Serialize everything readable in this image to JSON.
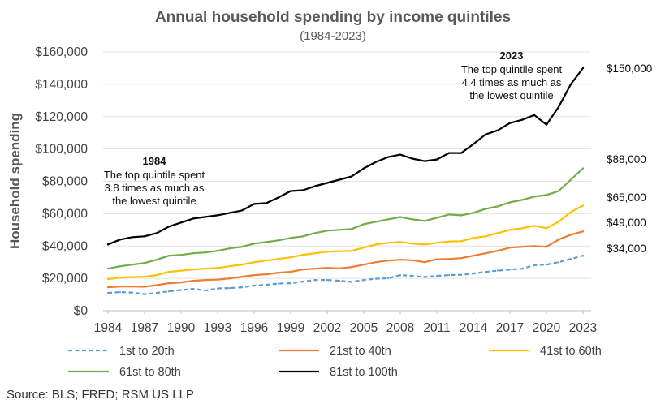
{
  "chart_data": {
    "type": "line",
    "title": "Annual household spending by income quintiles",
    "subtitle": "(1984-2023)",
    "xlabel": "",
    "ylabel": "Household spending",
    "x": [
      1984,
      1985,
      1986,
      1987,
      1988,
      1989,
      1990,
      1991,
      1992,
      1993,
      1994,
      1995,
      1996,
      1997,
      1998,
      1999,
      2000,
      2001,
      2002,
      2003,
      2004,
      2005,
      2006,
      2007,
      2008,
      2009,
      2010,
      2011,
      2012,
      2013,
      2014,
      2015,
      2016,
      2017,
      2018,
      2019,
      2020,
      2021,
      2022,
      2023
    ],
    "x_ticks": [
      "1984",
      "1987",
      "1990",
      "1993",
      "1996",
      "1999",
      "2002",
      "2005",
      "2008",
      "2011",
      "2014",
      "2017",
      "2020",
      "2023"
    ],
    "y_ticks": [
      "$0",
      "$20,000",
      "$40,000",
      "$60,000",
      "$80,000",
      "$100,000",
      "$120,000",
      "$140,000",
      "$160,000"
    ],
    "ylim": [
      0,
      160000
    ],
    "legend_position": "bottom",
    "series": [
      {
        "name": "1st to 20th",
        "color": "#5b9bd5",
        "style": "dashed",
        "values": [
          11000,
          11500,
          11200,
          10200,
          11000,
          12000,
          12800,
          13500,
          12500,
          13800,
          14000,
          14500,
          15500,
          16000,
          16800,
          17000,
          18000,
          19000,
          19000,
          18500,
          17800,
          19000,
          19800,
          20000,
          22000,
          21500,
          20800,
          21500,
          22000,
          22200,
          23000,
          24000,
          24800,
          25500,
          26000,
          28200,
          28500,
          30000,
          32000,
          34000
        ]
      },
      {
        "name": "21st to 40th",
        "color": "#ed7d31",
        "style": "solid",
        "values": [
          14500,
          15000,
          15000,
          14800,
          15800,
          17000,
          17500,
          18500,
          19000,
          19200,
          20000,
          21000,
          22000,
          22500,
          23500,
          24000,
          25500,
          26000,
          26500,
          26200,
          27000,
          28500,
          30000,
          31000,
          31500,
          31200,
          30000,
          31800,
          32000,
          32500,
          34000,
          35500,
          37000,
          39000,
          39500,
          40000,
          39500,
          44000,
          47000,
          49000
        ]
      },
      {
        "name": "41st to 60th",
        "color": "#ffc000",
        "style": "solid",
        "values": [
          19500,
          20500,
          20800,
          21000,
          22000,
          24000,
          24800,
          25500,
          26000,
          26500,
          27500,
          28500,
          30000,
          31000,
          32000,
          33000,
          34500,
          35500,
          36500,
          36800,
          37000,
          39000,
          41000,
          42000,
          42500,
          41500,
          41000,
          42000,
          42800,
          43000,
          45000,
          46000,
          48000,
          50000,
          51000,
          52500,
          51000,
          55000,
          61000,
          65000
        ]
      },
      {
        "name": "61st to 80th",
        "color": "#70ad47",
        "style": "solid",
        "values": [
          26000,
          27500,
          28500,
          29500,
          31500,
          34000,
          34500,
          35500,
          36000,
          37000,
          38500,
          39500,
          41500,
          42500,
          43500,
          45000,
          46000,
          48000,
          49500,
          50000,
          50500,
          53500,
          55000,
          56500,
          58000,
          56500,
          55500,
          57500,
          59500,
          59000,
          60500,
          63000,
          64500,
          67000,
          68500,
          70500,
          71500,
          74000,
          81000,
          88000
        ]
      },
      {
        "name": "81st to 100th",
        "color": "#000000",
        "style": "solid",
        "values": [
          41000,
          44000,
          45500,
          46000,
          48000,
          52000,
          54500,
          57000,
          58000,
          59000,
          60500,
          62000,
          66000,
          66500,
          70000,
          74000,
          74500,
          77000,
          79000,
          81000,
          83000,
          88000,
          92000,
          95000,
          96500,
          94000,
          92500,
          93500,
          97500,
          97500,
          103000,
          109000,
          111500,
          116000,
          118000,
          121000,
          115000,
          126000,
          140000,
          150000
        ]
      }
    ],
    "end_labels": [
      "$150,000",
      "$88,000",
      "$65,000",
      "$49,000",
      "$34,000"
    ],
    "annotations": {
      "left": {
        "year": "1984",
        "line1": "The top quintile spent",
        "line2": "3.8 times as much as",
        "line3": "the lowest quintile"
      },
      "right": {
        "year": "2023",
        "line1": "The top quintile spent",
        "line2": "4.4 times as much as",
        "line3": "the lowest quintile"
      }
    }
  },
  "source": "Source: BLS; FRED; RSM US LLP"
}
